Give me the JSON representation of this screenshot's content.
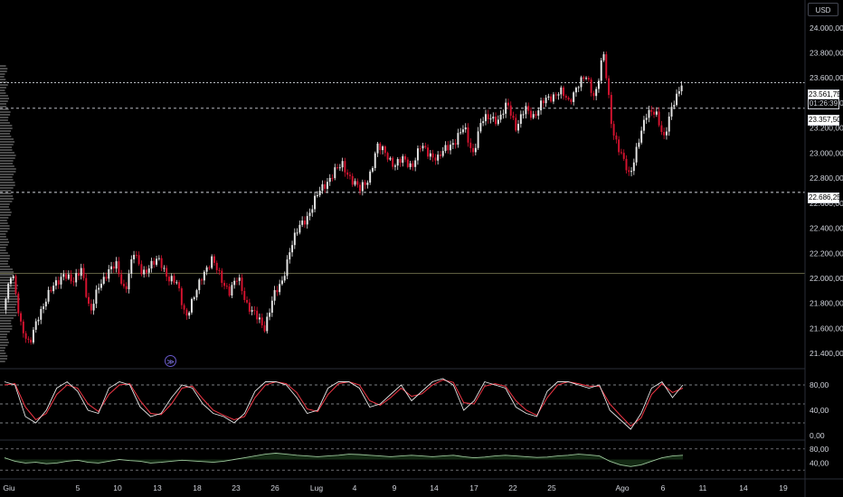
{
  "currency": "USD",
  "price_tags": {
    "last_price": "23.561,75",
    "countdown": "01:26:39",
    "level_1": "23.357,50",
    "level_2": "22.686,25"
  },
  "icons": {
    "replay": "replay-icon"
  },
  "colors": {
    "up": "#e6e6e6",
    "down": "#d5132f",
    "grid_dash": "#d1d4dc",
    "stoch_k": "#e6e6e6",
    "stoch_d": "#f23645",
    "rsi_line": "#9cc69b",
    "volume_profile": "#4a4a4a"
  },
  "chart_data": [
    {
      "type": "candlestick",
      "title": "",
      "y_ticks": [
        "24.000,00",
        "23.800,00",
        "23.600,00",
        "23.400,00",
        "23.200,00",
        "23.000,00",
        "22.800,00",
        "22.600,00",
        "22.400,00",
        "22.200,00",
        "22.000,00",
        "21.800,00",
        "21.600,00",
        "21.400,00"
      ],
      "x_ticks": [
        "Giu",
        "5",
        "10",
        "13",
        "18",
        "23",
        "26",
        "Lug",
        "4",
        "9",
        "14",
        "17",
        "22",
        "25",
        "Ago",
        "6",
        "11",
        "14",
        "19"
      ],
      "ylim": [
        21300,
        24150
      ],
      "horizontal_lines": [
        23561.75,
        23357.5,
        22686.25,
        22040
      ],
      "close_path": [
        21750,
        22050,
        21650,
        21450,
        21700,
        21850,
        21950,
        22050,
        21950,
        22100,
        21700,
        21950,
        22050,
        22100,
        21900,
        22200,
        22050,
        22100,
        22150,
        22000,
        21950,
        21700,
        21850,
        22050,
        22150,
        22000,
        21900,
        22000,
        21800,
        21700,
        21600,
        21850,
        21950,
        22250,
        22400,
        22500,
        22650,
        22750,
        22850,
        22900,
        22800,
        22700,
        22800,
        23050,
        23000,
        22900,
        22950,
        22900,
        23050,
        23000,
        22950,
        23050,
        23100,
        23200,
        23000,
        23250,
        23300,
        23250,
        23400,
        23200,
        23350,
        23300,
        23400,
        23450,
        23500,
        23400,
        23550,
        23600,
        23450,
        23800,
        23200,
        23000,
        22800,
        23100,
        23300,
        23350,
        23100,
        23400,
        23560
      ],
      "x_range": [
        0,
        755
      ]
    },
    {
      "type": "line",
      "title": "",
      "y_ticks": [
        "80,00",
        "40,00",
        "0,00"
      ],
      "ylim": [
        0,
        100
      ],
      "dashed_levels": [
        80,
        50,
        20
      ],
      "series": [
        {
          "values": [
            85,
            80,
            30,
            20,
            40,
            75,
            85,
            70,
            40,
            35,
            75,
            85,
            80,
            45,
            30,
            35,
            60,
            80,
            75,
            50,
            35,
            30,
            20,
            35,
            70,
            85,
            85,
            80,
            60,
            35,
            40,
            75,
            85,
            85,
            75,
            45,
            50,
            65,
            80,
            55,
            70,
            85,
            90,
            80,
            40,
            55,
            85,
            80,
            75,
            45,
            35,
            30,
            70,
            85,
            85,
            80,
            75,
            80,
            40,
            25,
            10,
            35,
            75,
            85,
            60,
            80
          ]
        },
        {
          "values": [
            80,
            82,
            45,
            25,
            35,
            65,
            80,
            75,
            50,
            38,
            65,
            80,
            82,
            55,
            35,
            33,
            50,
            75,
            78,
            58,
            40,
            32,
            25,
            30,
            60,
            80,
            85,
            82,
            68,
            42,
            38,
            65,
            82,
            85,
            80,
            55,
            48,
            60,
            75,
            62,
            66,
            80,
            88,
            84,
            52,
            50,
            78,
            82,
            78,
            55,
            40,
            32,
            60,
            80,
            85,
            82,
            78,
            78,
            50,
            32,
            15,
            28,
            65,
            82,
            68,
            75
          ]
        }
      ]
    },
    {
      "type": "line",
      "title": "",
      "y_ticks": [
        "80,00",
        "40,00"
      ],
      "ylim": [
        0,
        100
      ],
      "dashed_levels": [
        80,
        20
      ],
      "series": [
        {
          "values": [
            55,
            45,
            40,
            42,
            38,
            40,
            45,
            48,
            42,
            40,
            45,
            50,
            47,
            45,
            40,
            42,
            45,
            48,
            46,
            44,
            42,
            45,
            50,
            55,
            60,
            65,
            68,
            65,
            62,
            60,
            58,
            60,
            62,
            65,
            64,
            62,
            60,
            58,
            60,
            62,
            60,
            58,
            60,
            62,
            58,
            55,
            57,
            60,
            62,
            60,
            58,
            56,
            57,
            60,
            62,
            65,
            63,
            60,
            45,
            35,
            30,
            35,
            45,
            55,
            60,
            62
          ]
        }
      ]
    }
  ]
}
